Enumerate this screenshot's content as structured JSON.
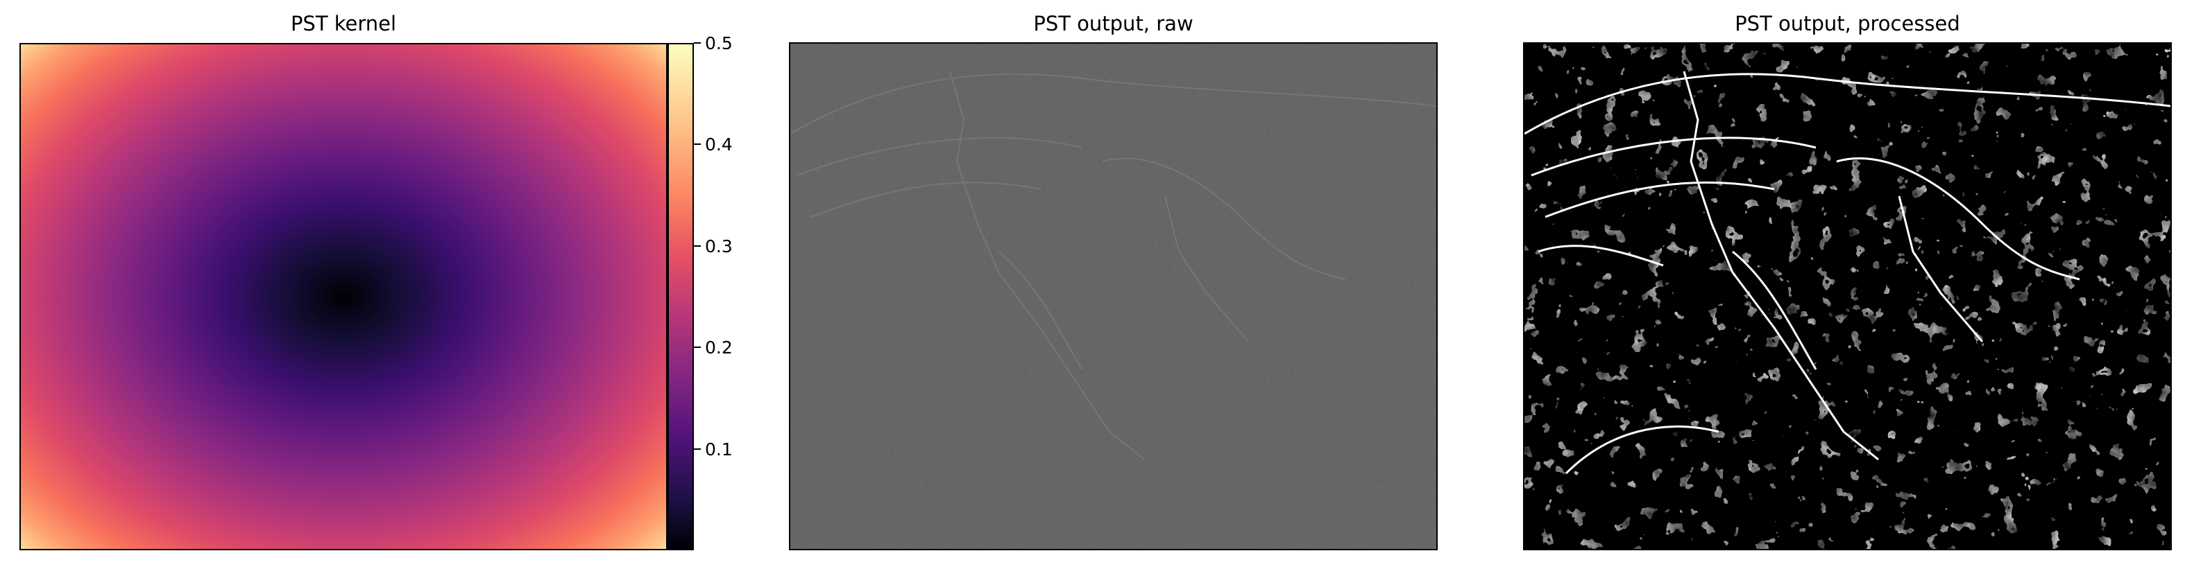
{
  "chart_data": [
    {
      "type": "heatmap",
      "title": "PST kernel",
      "colormap": "magma",
      "colorbar": {
        "ticks": [
          0.1,
          0.2,
          0.3,
          0.4,
          0.5
        ],
        "tick_labels": [
          "0.1",
          "0.2",
          "0.3",
          "0.4",
          "0.5"
        ],
        "range": [
          0.0,
          0.5
        ]
      },
      "axes_ticks": false
    },
    {
      "type": "heatmap",
      "title": "PST output, raw",
      "colormap": "gray",
      "axes_ticks": false
    },
    {
      "type": "heatmap",
      "title": "PST output, processed",
      "colormap": "gray",
      "axes_ticks": false
    }
  ]
}
